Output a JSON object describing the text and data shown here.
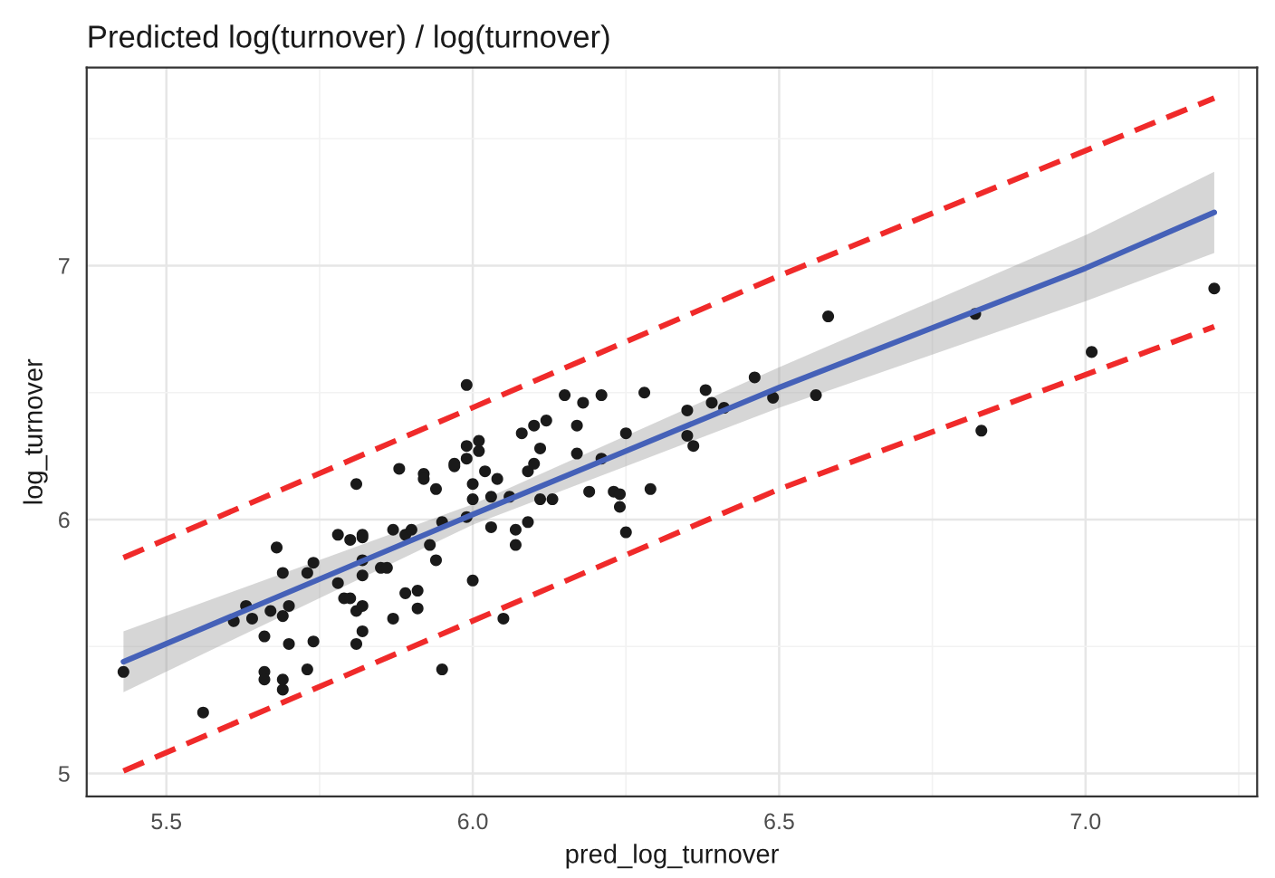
{
  "chart_data": {
    "type": "scatter",
    "title": "Predicted log(turnover) / log(turnover)",
    "xlabel": "pred_log_turnover",
    "ylabel": "log_turnover",
    "xlim": [
      5.37,
      7.28
    ],
    "xticks": [
      5.5,
      {
        "value": 6.0,
        "label": "6.0"
      },
      6.5,
      {
        "value": 7.0,
        "label": "7.0"
      }
    ],
    "ylim": [
      4.91,
      7.78
    ],
    "yticks": [
      5,
      6,
      7
    ],
    "grid": true,
    "series": [
      {
        "color": "#1a1a1a",
        "marker": "circle",
        "x": [
          5.43,
          5.56,
          5.61,
          5.63,
          5.64,
          5.66,
          5.66,
          5.66,
          5.69,
          5.69,
          5.68,
          5.69,
          5.67,
          5.69,
          5.7,
          5.7,
          5.73,
          5.73,
          5.74,
          5.74,
          5.78,
          5.78,
          5.79,
          5.8,
          5.81,
          5.82,
          5.81,
          5.82,
          5.8,
          5.82,
          5.82,
          5.81,
          5.82,
          5.82,
          5.85,
          5.86,
          5.87,
          5.88,
          5.87,
          5.89,
          5.9,
          5.89,
          5.91,
          5.91,
          5.92,
          5.92,
          5.93,
          5.94,
          5.94,
          5.95,
          5.95,
          5.97,
          5.97,
          5.99,
          5.99,
          5.99,
          6.0,
          6.0,
          6.0,
          5.99,
          6.01,
          6.01,
          6.02,
          6.03,
          6.04,
          6.03,
          6.06,
          6.07,
          6.07,
          6.09,
          6.09,
          6.1,
          6.11,
          6.08,
          6.1,
          6.12,
          6.11,
          6.13,
          6.15,
          6.18,
          6.17,
          6.17,
          6.19,
          6.21,
          6.21,
          6.23,
          6.24,
          6.24,
          6.25,
          6.25,
          6.28,
          6.29,
          6.35,
          6.35,
          6.36,
          6.38,
          6.39,
          6.41,
          6.46,
          6.49,
          6.56,
          6.58,
          6.82,
          6.83,
          7.01,
          7.21,
          6.05
        ],
        "values": [
          5.4,
          5.24,
          5.6,
          5.66,
          5.61,
          5.54,
          5.4,
          5.37,
          5.33,
          5.37,
          5.89,
          5.79,
          5.64,
          5.62,
          5.66,
          5.51,
          5.41,
          5.79,
          5.52,
          5.83,
          5.94,
          5.75,
          5.69,
          5.69,
          5.64,
          5.66,
          5.51,
          5.56,
          5.92,
          5.93,
          5.94,
          6.14,
          5.84,
          5.78,
          5.81,
          5.81,
          5.61,
          6.2,
          5.96,
          5.94,
          5.96,
          5.71,
          5.72,
          5.65,
          6.18,
          6.16,
          5.9,
          6.12,
          5.84,
          5.99,
          5.41,
          6.21,
          6.22,
          6.29,
          6.24,
          6.53,
          6.08,
          6.14,
          5.76,
          6.01,
          6.31,
          6.27,
          6.19,
          6.09,
          6.16,
          5.97,
          6.09,
          5.96,
          5.9,
          5.99,
          6.19,
          6.22,
          6.28,
          6.34,
          6.37,
          6.39,
          6.08,
          6.08,
          6.49,
          6.46,
          6.37,
          6.26,
          6.11,
          6.49,
          6.24,
          6.11,
          6.1,
          6.05,
          5.95,
          6.34,
          6.5,
          6.12,
          6.43,
          6.33,
          6.29,
          6.51,
          6.46,
          6.44,
          6.56,
          6.48,
          6.49,
          6.8,
          6.81,
          6.35,
          6.66,
          6.91,
          5.61
        ]
      },
      {
        "type": "line",
        "color": "#4561b8",
        "line_style": "solid",
        "x": [
          5.43,
          6.0,
          6.5,
          7.0,
          7.21
        ],
        "values": [
          5.44,
          6.02,
          6.52,
          6.99,
          7.21
        ],
        "lower": [
          5.32,
          5.98,
          6.44,
          6.86,
          7.05
        ],
        "upper": [
          5.56,
          6.06,
          6.6,
          7.12,
          7.37
        ]
      },
      {
        "type": "line",
        "color": "#f02a2a",
        "line_style": "dashed",
        "x": [
          5.43,
          6.5,
          7.21
        ],
        "values": [
          5.85,
          6.96,
          7.66
        ]
      },
      {
        "type": "line",
        "color": "#f02a2a",
        "line_style": "dashed",
        "x": [
          5.43,
          6.5,
          7.21
        ],
        "values": [
          5.01,
          6.12,
          6.76
        ]
      }
    ]
  }
}
